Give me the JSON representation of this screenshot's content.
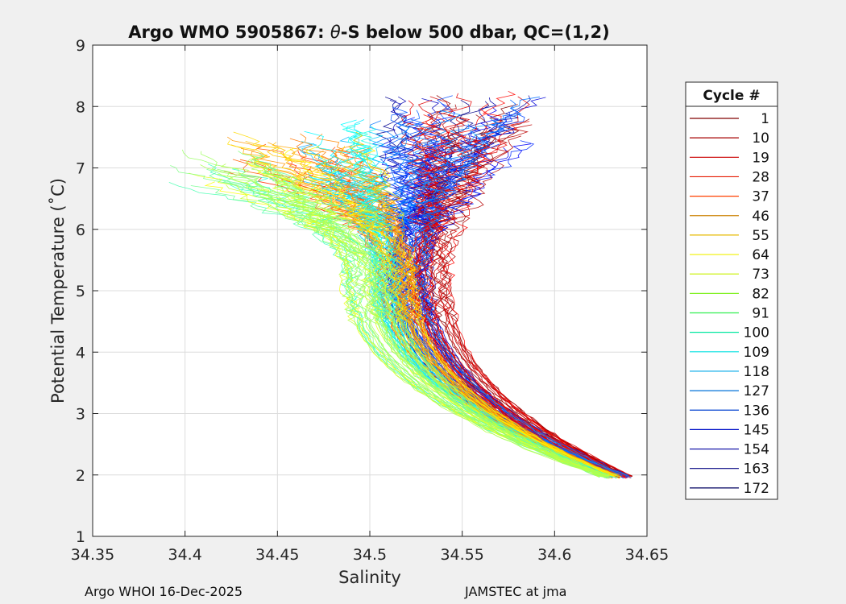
{
  "chart_data": {
    "type": "line",
    "title_parts": [
      "Argo WMO 5905867: ",
      "θ",
      "-S below 500 dbar,  QC=(1,2)"
    ],
    "xlabel": "Salinity",
    "ylabel": "Potential Temperature (˚C)",
    "xlim": [
      34.35,
      34.65
    ],
    "ylim": [
      1,
      9
    ],
    "xticks": [
      "34.35",
      "34.4",
      "34.45",
      "34.5",
      "34.55",
      "34.6",
      "34.65"
    ],
    "yticks": [
      "1",
      "2",
      "3",
      "4",
      "5",
      "6",
      "7",
      "8",
      "9"
    ],
    "grid": true,
    "legend": {
      "title": "Cycle #",
      "placement": "right-outside",
      "entries": [
        {
          "label": "1",
          "color": "#800000"
        },
        {
          "label": "10",
          "color": "#a50000"
        },
        {
          "label": "19",
          "color": "#cc0000"
        },
        {
          "label": "28",
          "color": "#e61a00"
        },
        {
          "label": "37",
          "color": "#ff4000"
        },
        {
          "label": "46",
          "color": "#cc8000"
        },
        {
          "label": "55",
          "color": "#e6b800"
        },
        {
          "label": "64",
          "color": "#f2f200"
        },
        {
          "label": "73",
          "color": "#c8f000"
        },
        {
          "label": "82",
          "color": "#80f020"
        },
        {
          "label": "91",
          "color": "#30f050"
        },
        {
          "label": "100",
          "color": "#00e8a0"
        },
        {
          "label": "109",
          "color": "#00e0e0"
        },
        {
          "label": "118",
          "color": "#00a8e8"
        },
        {
          "label": "127",
          "color": "#0070d8"
        },
        {
          "label": "136",
          "color": "#0040d0"
        },
        {
          "label": "145",
          "color": "#0010c8"
        },
        {
          "label": "154",
          "color": "#0000a0"
        },
        {
          "label": "163",
          "color": "#000080"
        },
        {
          "label": "172",
          "color": "#000060"
        }
      ]
    },
    "series_shape": {
      "deep_end": {
        "salinity_range": [
          34.625,
          34.642
        ],
        "theta": 1.95
      },
      "bend": {
        "salinity_range": [
          34.505,
          34.545
        ],
        "theta": 5.3
      },
      "upper_end_by_group": [
        {
          "group": "red",
          "salinity_range": [
            34.52,
            34.585
          ],
          "theta_range": [
            7.6,
            8.25
          ]
        },
        {
          "group": "orange-yellow",
          "salinity_range": [
            34.42,
            34.5
          ],
          "theta_range": [
            6.9,
            7.6
          ]
        },
        {
          "group": "green",
          "salinity_range": [
            34.385,
            34.47
          ],
          "theta_range": [
            6.6,
            7.2
          ]
        },
        {
          "group": "cyan",
          "salinity_range": [
            34.46,
            34.505
          ],
          "theta_range": [
            6.8,
            7.8
          ]
        },
        {
          "group": "blue",
          "salinity_range": [
            34.5,
            34.59
          ],
          "theta_range": [
            7.3,
            8.25
          ]
        }
      ]
    }
  },
  "footer": {
    "left": "Argo WHOI 16-Dec-2025",
    "right": "JAMSTEC at jma"
  }
}
